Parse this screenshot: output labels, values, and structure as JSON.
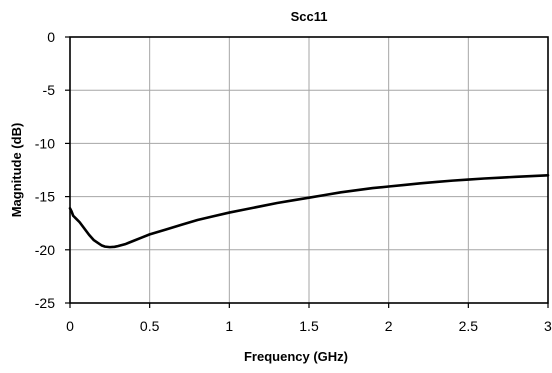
{
  "chart_data": {
    "type": "line",
    "title": "Scc11",
    "xlabel": "Frequency (GHz)",
    "ylabel": "Magnitude (dB)",
    "xlim": [
      0,
      3
    ],
    "ylim": [
      -25,
      0
    ],
    "x_ticks": [
      0,
      0.5,
      1,
      1.5,
      2,
      2.5,
      3
    ],
    "x_tick_labels": [
      "0",
      "0.5",
      "1",
      "1.5",
      "2",
      "2.5",
      "3"
    ],
    "y_ticks": [
      0,
      -5,
      -10,
      -15,
      -20,
      -25
    ],
    "y_tick_labels": [
      "0",
      "-5",
      "-10",
      "-15",
      "-20",
      "-25"
    ],
    "grid": true,
    "legend": "none",
    "series": [
      {
        "color": "#000000",
        "x": [
          0,
          0.01,
          0.02,
          0.04,
          0.06,
          0.08,
          0.1,
          0.12,
          0.15,
          0.18,
          0.2,
          0.22,
          0.25,
          0.28,
          0.3,
          0.35,
          0.4,
          0.45,
          0.5,
          0.6,
          0.7,
          0.8,
          0.9,
          1.0,
          1.1,
          1.2,
          1.3,
          1.4,
          1.5,
          1.6,
          1.7,
          1.8,
          1.9,
          2.0,
          2.1,
          2.2,
          2.3,
          2.4,
          2.5,
          2.6,
          2.7,
          2.8,
          2.9,
          3.0
        ],
        "y": [
          -16.1,
          -16.4,
          -16.8,
          -17.1,
          -17.4,
          -17.8,
          -18.2,
          -18.6,
          -19.1,
          -19.4,
          -19.6,
          -19.7,
          -19.75,
          -19.72,
          -19.65,
          -19.45,
          -19.15,
          -18.85,
          -18.55,
          -18.1,
          -17.65,
          -17.2,
          -16.85,
          -16.5,
          -16.2,
          -15.9,
          -15.6,
          -15.35,
          -15.1,
          -14.85,
          -14.6,
          -14.4,
          -14.2,
          -14.05,
          -13.9,
          -13.75,
          -13.62,
          -13.5,
          -13.4,
          -13.3,
          -13.22,
          -13.14,
          -13.07,
          -13.0
        ]
      }
    ]
  }
}
